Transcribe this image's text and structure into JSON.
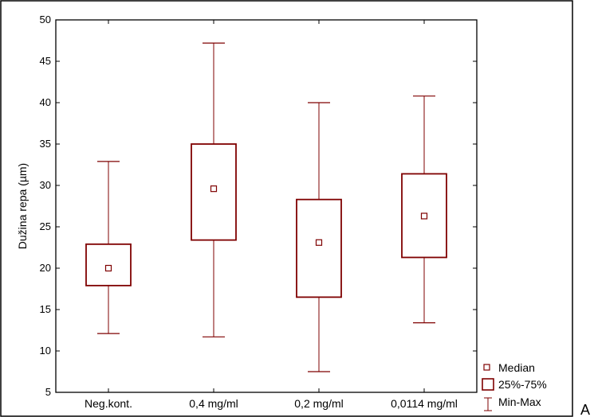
{
  "colors": {
    "box": "#7f0000",
    "frame": "#000000",
    "background": "#ffffff"
  },
  "chart_data": {
    "type": "boxplot",
    "ylabel": "Dužina repa (µm)",
    "xlabel": "",
    "ylim": [
      5,
      50
    ],
    "yticks": [
      5,
      10,
      15,
      20,
      25,
      30,
      35,
      40,
      45,
      50
    ],
    "grid": false,
    "legend_position": "bottom-right",
    "categories": [
      "Neg.kont.",
      "0,4 mg/ml",
      "0,2 mg/ml",
      "0,0114 mg/ml"
    ],
    "series": [
      {
        "category": "Neg.kont.",
        "min": 12.1,
        "q1": 17.9,
        "median": 20.0,
        "q3": 22.9,
        "max": 32.9
      },
      {
        "category": "0,4 mg/ml",
        "min": 11.7,
        "q1": 23.4,
        "median": 29.6,
        "q3": 35.0,
        "max": 47.2
      },
      {
        "category": "0,2 mg/ml",
        "min": 7.5,
        "q1": 16.5,
        "median": 23.1,
        "q3": 28.3,
        "max": 40.0
      },
      {
        "category": "0,0114 mg/ml",
        "min": 13.4,
        "q1": 21.3,
        "median": 26.3,
        "q3": 31.4,
        "max": 40.8
      }
    ],
    "legend": [
      {
        "symbol": "median-marker",
        "label": "Median"
      },
      {
        "symbol": "box",
        "label": "25%-75%"
      },
      {
        "symbol": "whisker",
        "label": "Min-Max"
      }
    ],
    "panel_label": "A"
  }
}
